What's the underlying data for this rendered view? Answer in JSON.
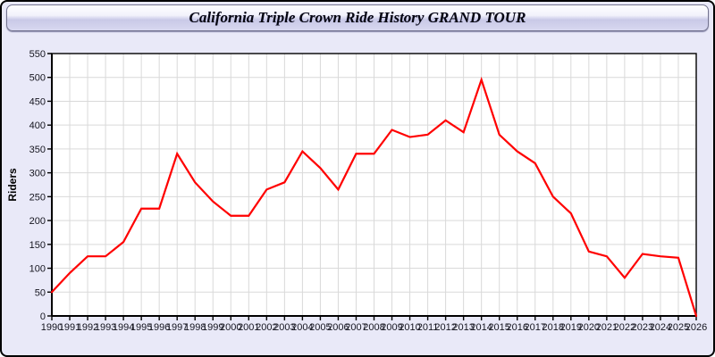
{
  "header": {
    "title": "California Triple Crown Ride History GRAND TOUR"
  },
  "chart_data": {
    "type": "line",
    "title": "California Triple Crown Ride History GRAND TOUR",
    "xlabel": "",
    "ylabel": "Riders",
    "x": [
      1990,
      1991,
      1992,
      1993,
      1994,
      1995,
      1996,
      1997,
      1998,
      1999,
      2000,
      2001,
      2002,
      2003,
      2004,
      2005,
      2006,
      2007,
      2008,
      2009,
      2010,
      2011,
      2012,
      2013,
      2014,
      2015,
      2016,
      2017,
      2018,
      2019,
      2020,
      2021,
      2022,
      2023,
      2024,
      2025,
      2026
    ],
    "series": [
      {
        "name": "Riders",
        "color": "#FF0000",
        "values": [
          50,
          90,
          125,
          125,
          155,
          225,
          225,
          340,
          280,
          240,
          210,
          210,
          265,
          280,
          345,
          310,
          265,
          340,
          340,
          390,
          375,
          380,
          410,
          385,
          495,
          380,
          345,
          320,
          250,
          215,
          135,
          125,
          80,
          130,
          125,
          122,
          0
        ]
      }
    ],
    "ylim": [
      0,
      550
    ],
    "ytick_step": 50,
    "yticks": [
      0,
      50,
      100,
      150,
      200,
      250,
      300,
      350,
      400,
      450,
      500,
      550
    ],
    "grid": true,
    "legend_position": "none",
    "colors": {
      "page_background": "#E9E9F8",
      "plot_background": "#FFFFFF",
      "gridline": "#D9D9D9",
      "axis": "#000000",
      "tick_label": "#15151F",
      "line": "#FF0000"
    }
  }
}
